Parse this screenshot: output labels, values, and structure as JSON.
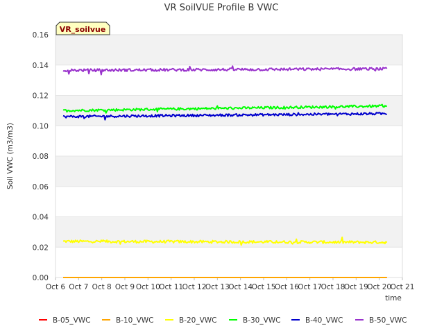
{
  "chart_data": {
    "type": "line",
    "title": "VR SoilVUE Profile B VWC",
    "xlabel": "time",
    "ylabel": "Soil VWC (m3/m3)",
    "ylim": [
      0,
      0.16
    ],
    "yticks": [
      "0.00",
      "0.02",
      "0.04",
      "0.06",
      "0.08",
      "0.10",
      "0.12",
      "0.14",
      "0.16"
    ],
    "xlim": [
      6,
      21
    ],
    "xticks": [
      {
        "value": 6,
        "label": "Oct 6"
      },
      {
        "value": 7,
        "label": "Oct 7"
      },
      {
        "value": 8,
        "label": "Oct 8"
      },
      {
        "value": 9,
        "label": "Oct 9"
      },
      {
        "value": 10,
        "label": "Oct 10"
      },
      {
        "value": 11,
        "label": "Oct 11"
      },
      {
        "value": 12,
        "label": "Oct 12"
      },
      {
        "value": 13,
        "label": "Oct 13"
      },
      {
        "value": 14,
        "label": "Oct 14"
      },
      {
        "value": 15,
        "label": "Oct 15"
      },
      {
        "value": 16,
        "label": "Oct 16"
      },
      {
        "value": 17,
        "label": "Oct 17"
      },
      {
        "value": 18,
        "label": "Oct 18"
      },
      {
        "value": 19,
        "label": "Oct 19"
      },
      {
        "value": 20,
        "label": "Oct 20"
      },
      {
        "value": 21,
        "label": "Oct 21"
      }
    ],
    "grid": true,
    "legend_position": "bottom",
    "annotation": "VR_soilvue",
    "x_start": 6.33,
    "x_end": 20.33,
    "series": [
      {
        "name": "B-05_VWC",
        "color": "#ff0000",
        "start": 0.0,
        "end": 0.0,
        "noise": 0.0
      },
      {
        "name": "B-10_VWC",
        "color": "#ffa500",
        "start": 0.0,
        "end": 0.0,
        "noise": 0.0
      },
      {
        "name": "B-20_VWC",
        "color": "#ffff00",
        "start": 0.0238,
        "end": 0.0232,
        "noise": 0.0009
      },
      {
        "name": "B-30_VWC",
        "color": "#00ff00",
        "start": 0.11,
        "end": 0.113,
        "noise": 0.0008
      },
      {
        "name": "B-40_VWC",
        "color": "#0000cc",
        "start": 0.106,
        "end": 0.108,
        "noise": 0.0008
      },
      {
        "name": "B-50_VWC",
        "color": "#9932cc",
        "start": 0.1365,
        "end": 0.1375,
        "noise": 0.0009
      }
    ]
  }
}
